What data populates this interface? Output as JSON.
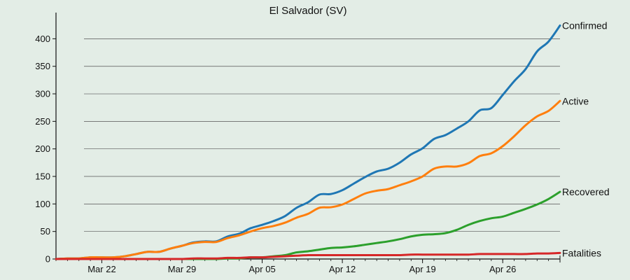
{
  "chart_data": {
    "type": "line",
    "title": "El Salvador (SV)",
    "xlabel": "",
    "ylabel": "",
    "x_start": "Mar 18",
    "x_end": "May 1",
    "x_ticks": [
      {
        "date": "Mar 22",
        "label": "Mar 22"
      },
      {
        "date": "Mar 29",
        "label": "Mar 29"
      },
      {
        "date": "Apr 05",
        "label": "Apr 05"
      },
      {
        "date": "Apr 12",
        "label": "Apr 12"
      },
      {
        "date": "Apr 19",
        "label": "Apr 19"
      },
      {
        "date": "Apr 26",
        "label": "Apr 26"
      }
    ],
    "ylim": [
      0,
      445
    ],
    "y_ticks": [
      0,
      50,
      100,
      150,
      200,
      250,
      300,
      350,
      400
    ],
    "grid": "horizontal",
    "legend": "labels at line ends",
    "x": [
      "Mar 18",
      "Mar 19",
      "Mar 20",
      "Mar 21",
      "Mar 22",
      "Mar 23",
      "Mar 24",
      "Mar 25",
      "Mar 26",
      "Mar 27",
      "Mar 28",
      "Mar 29",
      "Mar 30",
      "Mar 31",
      "Apr 01",
      "Apr 02",
      "Apr 03",
      "Apr 04",
      "Apr 05",
      "Apr 06",
      "Apr 07",
      "Apr 08",
      "Apr 09",
      "Apr 10",
      "Apr 11",
      "Apr 12",
      "Apr 13",
      "Apr 14",
      "Apr 15",
      "Apr 16",
      "Apr 17",
      "Apr 18",
      "Apr 19",
      "Apr 20",
      "Apr 21",
      "Apr 22",
      "Apr 23",
      "Apr 24",
      "Apr 25",
      "Apr 26",
      "Apr 27",
      "Apr 28",
      "Apr 29",
      "Apr 30",
      "May 01"
    ],
    "series": [
      {
        "name": "Confirmed",
        "color": "#1f77b4",
        "values": [
          0,
          1,
          1,
          3,
          3,
          3,
          5,
          9,
          13,
          13,
          19,
          24,
          30,
          32,
          32,
          41,
          46,
          56,
          62,
          69,
          78,
          93,
          103,
          117,
          118,
          125,
          137,
          149,
          159,
          164,
          175,
          190,
          201,
          218,
          225,
          237,
          250,
          270,
          274,
          298,
          323,
          345,
          377,
          395,
          424
        ]
      },
      {
        "name": "Active",
        "color": "#ff7f0e",
        "values": [
          0,
          1,
          1,
          3,
          3,
          3,
          5,
          9,
          13,
          13,
          19,
          24,
          29,
          31,
          31,
          38,
          43,
          50,
          56,
          60,
          66,
          75,
          82,
          93,
          94,
          99,
          109,
          119,
          124,
          127,
          134,
          141,
          150,
          164,
          168,
          168,
          174,
          187,
          192,
          205,
          223,
          243,
          259,
          269,
          287
        ]
      },
      {
        "name": "Recovered",
        "color": "#2ca02c",
        "values": [
          0,
          0,
          0,
          0,
          0,
          0,
          0,
          0,
          0,
          0,
          0,
          0,
          0,
          0,
          0,
          1,
          1,
          3,
          3,
          5,
          7,
          12,
          14,
          17,
          20,
          21,
          23,
          26,
          29,
          32,
          36,
          41,
          44,
          45,
          47,
          53,
          62,
          69,
          74,
          77,
          84,
          91,
          99,
          109,
          122
        ]
      },
      {
        "name": "Fatalities",
        "color": "#d62728",
        "values": [
          0,
          0,
          0,
          0,
          0,
          0,
          0,
          0,
          0,
          0,
          0,
          0,
          1,
          1,
          1,
          2,
          2,
          3,
          3,
          4,
          5,
          6,
          7,
          7,
          7,
          7,
          7,
          7,
          7,
          7,
          7,
          8,
          8,
          8,
          8,
          8,
          8,
          9,
          9,
          9,
          9,
          9,
          10,
          10,
          11
        ]
      }
    ]
  }
}
